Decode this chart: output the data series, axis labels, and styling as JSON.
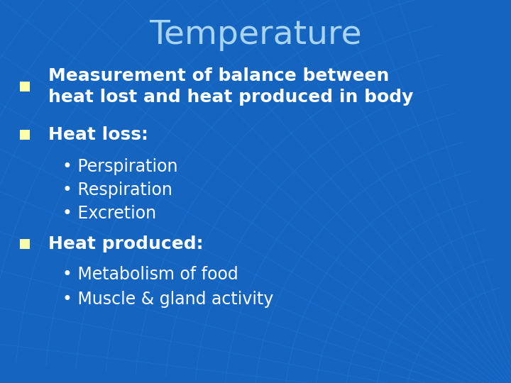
{
  "title": "Temperature",
  "title_color": "#a8d4f0",
  "title_fontsize": 34,
  "bg_color": "#1464c0",
  "arc_color": "#1a72d4",
  "bullet_color": "#ffffaa",
  "text_color": "#ffffff",
  "bullet_items": [
    {
      "level": 1,
      "text": "Measurement of balance between\nheat lost and heat produced in body"
    },
    {
      "level": 1,
      "text": "Heat loss:"
    },
    {
      "level": 2,
      "text": "• Perspiration"
    },
    {
      "level": 2,
      "text": "• Respiration"
    },
    {
      "level": 2,
      "text": "• Excretion"
    },
    {
      "level": 1,
      "text": "Heat produced:"
    },
    {
      "level": 2,
      "text": "• Metabolism of food"
    },
    {
      "level": 2,
      "text": "• Muscle & gland activity"
    }
  ],
  "bullet_fontsize": 18,
  "sub_bullet_fontsize": 17,
  "figsize": [
    7.2,
    5.4
  ],
  "dpi": 100
}
